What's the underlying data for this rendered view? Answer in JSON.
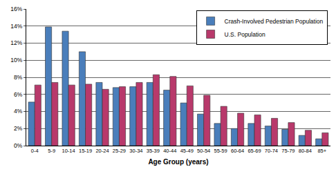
{
  "chart_data": {
    "type": "bar",
    "x_label": "Age Group (years)",
    "categories": [
      "0-4",
      "5-9",
      "10-14",
      "15-19",
      "20-24",
      "25-29",
      "30-34",
      "35-39",
      "40-44",
      "45-49",
      "50-54",
      "55-59",
      "60-64",
      "65-69",
      "70-74",
      "75-79",
      "80-84",
      "85+"
    ],
    "series": [
      {
        "name": "Crash-Involved Pedestrian Population",
        "color": "#4a7ebb",
        "values": [
          5.1,
          13.9,
          13.4,
          11.0,
          7.4,
          6.8,
          6.9,
          7.4,
          6.5,
          5.0,
          3.7,
          2.6,
          2.0,
          2.6,
          2.3,
          1.9,
          1.2,
          0.8
        ]
      },
      {
        "name": "U.S. Population",
        "color": "#b8396b",
        "values": [
          7.1,
          7.4,
          7.1,
          7.2,
          6.6,
          6.9,
          7.4,
          8.3,
          8.1,
          7.0,
          5.9,
          4.6,
          3.8,
          3.6,
          3.2,
          2.7,
          1.8,
          1.5
        ]
      }
    ],
    "ylim": [
      0,
      16
    ],
    "yticks": [
      {
        "value": 0,
        "label": "0%"
      },
      {
        "value": 2,
        "label": "2%"
      },
      {
        "value": 4,
        "label": "4%"
      },
      {
        "value": 6,
        "label": "6%"
      },
      {
        "value": 8,
        "label": "8%"
      },
      {
        "value": 10,
        "label": "10%"
      },
      {
        "value": 12,
        "label": "12%"
      },
      {
        "value": 14,
        "label": "14%"
      },
      {
        "value": 16,
        "label": "16%"
      }
    ],
    "grid": true,
    "legend": "upper right"
  }
}
